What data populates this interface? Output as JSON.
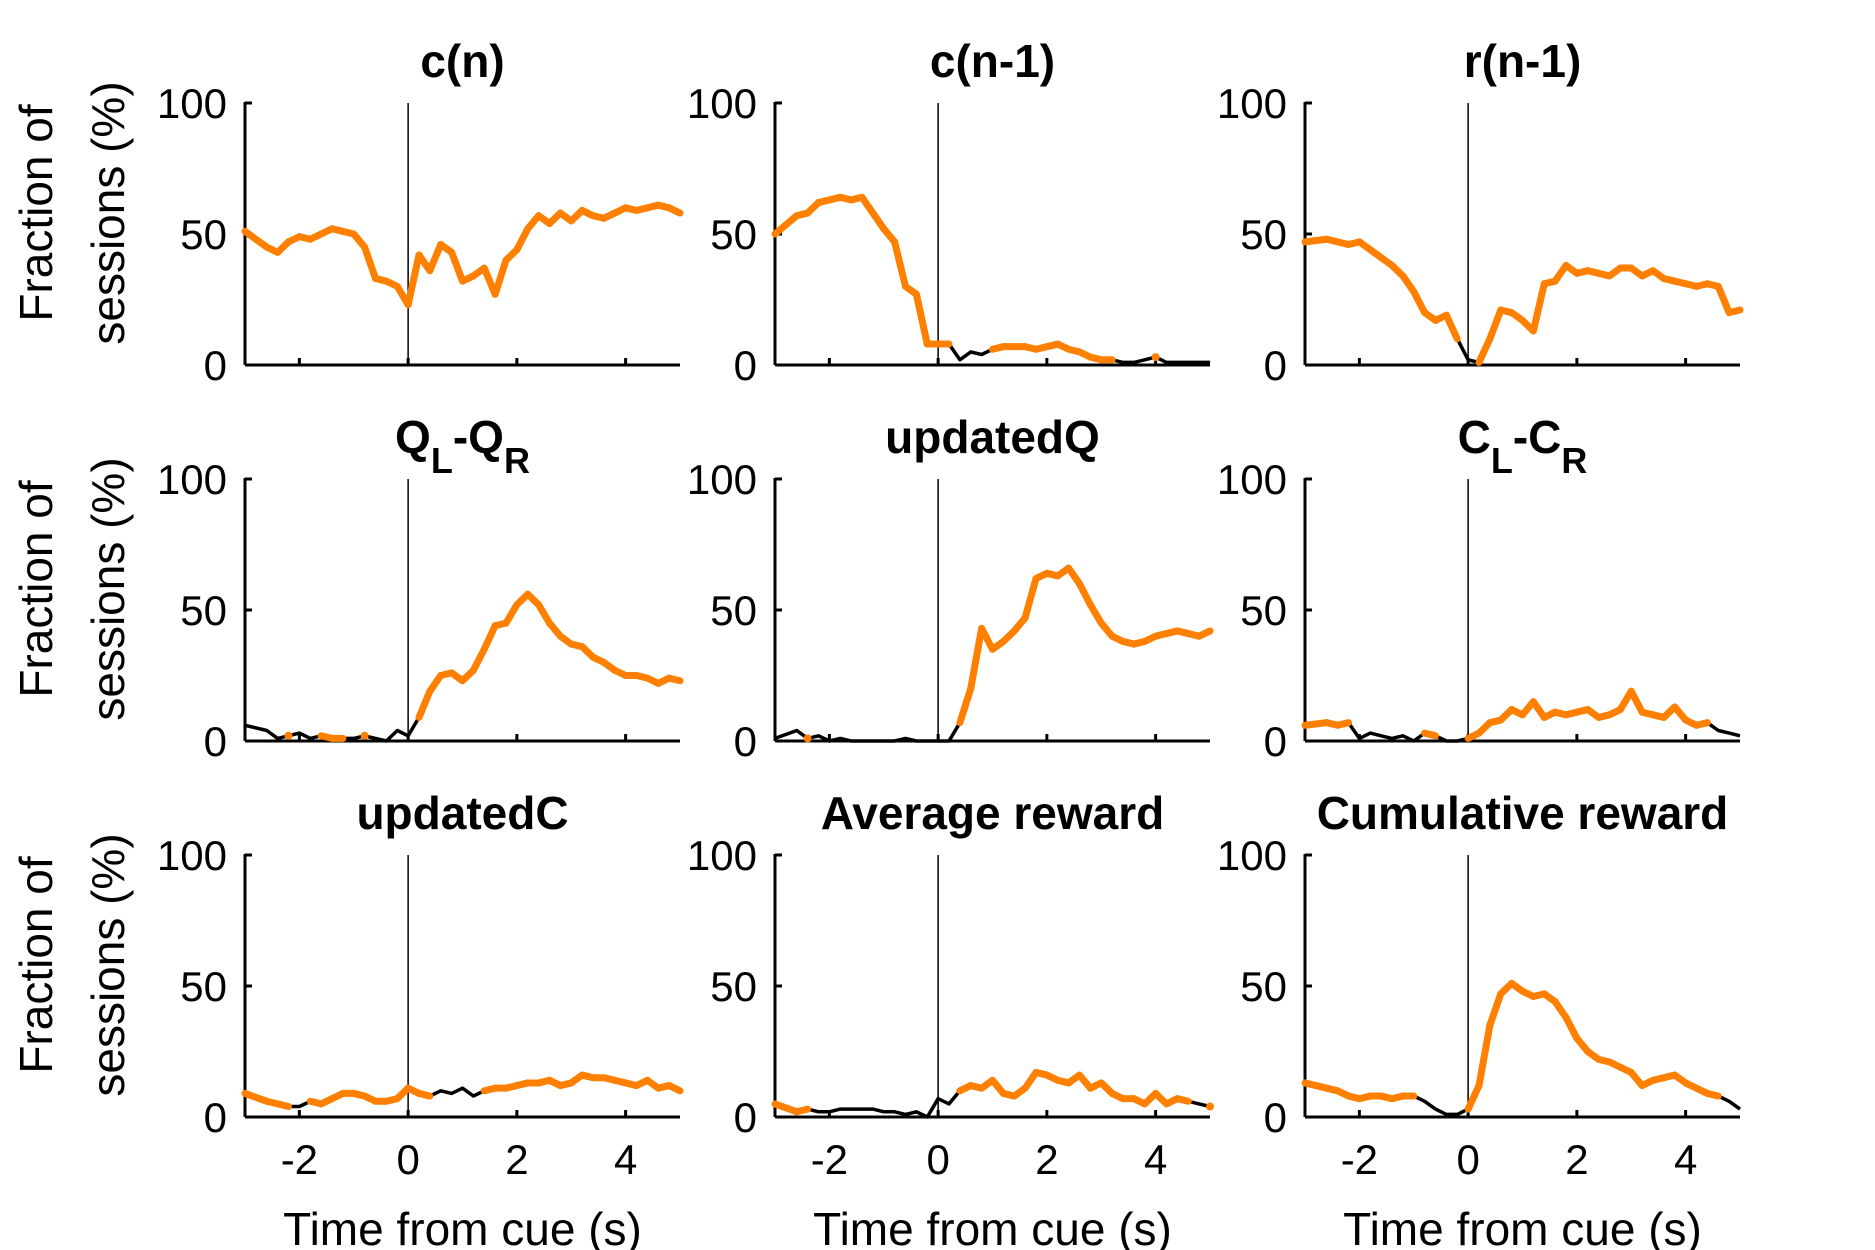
{
  "chart_data": {
    "type": "line",
    "layout": "3x3 grid of line plots",
    "xlabel": "Time from cue (s)",
    "ylabel_lines": [
      "Fraction of",
      "sessions (%)"
    ],
    "xlim": [
      -3,
      5
    ],
    "ylim": [
      0,
      100
    ],
    "xticks": [
      -2,
      0,
      2,
      4
    ],
    "xtick_labels": [
      "-2",
      "0",
      "2",
      "4"
    ],
    "yticks": [
      0,
      50,
      100
    ],
    "ytick_labels": [
      "0",
      "50",
      "100"
    ],
    "vertical_line_x": 0,
    "grid": false,
    "legend": "none",
    "colors": {
      "significant": "#FF8000",
      "not_significant": "#000000"
    },
    "panels": [
      {
        "title": "c(n)",
        "title_main": "c(n)",
        "x": [
          -3,
          -2.6,
          -2.4,
          -2.2,
          -2,
          -1.8,
          -1.6,
          -1.4,
          -1.2,
          -1,
          -0.8,
          -0.6,
          -0.4,
          -0.2,
          0,
          0.2,
          0.4,
          0.6,
          0.8,
          1,
          1.2,
          1.4,
          1.6,
          1.8,
          2,
          2.2,
          2.4,
          2.6,
          2.8,
          3,
          3.2,
          3.4,
          3.6,
          3.8,
          4,
          4.2,
          4.4,
          4.6,
          4.8,
          5
        ],
        "values": [
          51,
          45,
          43,
          47,
          49,
          48,
          50,
          52,
          51,
          50,
          45,
          33,
          32,
          30,
          23,
          42,
          36,
          46,
          43,
          32,
          34,
          37,
          27,
          40,
          44,
          52,
          57,
          54,
          58,
          55,
          59,
          57,
          56,
          58,
          60,
          59,
          60,
          61,
          60,
          58
        ],
        "significant": [
          true,
          true,
          true,
          true,
          true,
          true,
          true,
          true,
          true,
          true,
          true,
          true,
          true,
          true,
          true,
          true,
          true,
          true,
          true,
          true,
          true,
          true,
          true,
          true,
          true,
          true,
          true,
          true,
          true,
          true,
          true,
          true,
          true,
          true,
          true,
          true,
          true,
          true,
          true,
          true
        ]
      },
      {
        "title": "c(n-1)",
        "title_main": "c(n-1)",
        "x": [
          -3,
          -2.6,
          -2.4,
          -2.2,
          -2,
          -1.8,
          -1.6,
          -1.4,
          -1.2,
          -1,
          -0.8,
          -0.6,
          -0.4,
          -0.2,
          0,
          0.2,
          0.4,
          0.6,
          0.8,
          1,
          1.2,
          1.4,
          1.6,
          1.8,
          2,
          2.2,
          2.4,
          2.6,
          2.8,
          3,
          3.2,
          3.4,
          3.6,
          3.8,
          4,
          4.2,
          4.4,
          4.6,
          4.8,
          5
        ],
        "values": [
          50,
          57,
          58,
          62,
          63,
          64,
          63,
          64,
          58,
          52,
          47,
          30,
          27,
          8,
          8,
          8,
          2,
          5,
          4,
          6,
          7,
          7,
          7,
          6,
          7,
          8,
          6,
          5,
          3,
          2,
          2,
          1,
          1,
          2,
          3,
          1,
          1,
          1,
          1,
          1
        ],
        "significant": [
          true,
          true,
          true,
          true,
          true,
          true,
          true,
          true,
          true,
          true,
          true,
          true,
          true,
          true,
          true,
          true,
          false,
          false,
          false,
          true,
          true,
          true,
          true,
          true,
          true,
          true,
          true,
          true,
          true,
          true,
          true,
          false,
          false,
          false,
          true,
          false,
          false,
          false,
          false,
          false
        ]
      },
      {
        "title": "r(n-1)",
        "title_main": "r(n-1)",
        "x": [
          -3,
          -2.6,
          -2.4,
          -2.2,
          -2,
          -1.8,
          -1.6,
          -1.4,
          -1.2,
          -1,
          -0.8,
          -0.6,
          -0.4,
          -0.2,
          0,
          0.2,
          0.4,
          0.6,
          0.8,
          1,
          1.2,
          1.4,
          1.6,
          1.8,
          2,
          2.2,
          2.4,
          2.6,
          2.8,
          3,
          3.2,
          3.4,
          3.6,
          3.8,
          4,
          4.2,
          4.4,
          4.6,
          4.8,
          5
        ],
        "values": [
          47,
          48,
          47,
          46,
          47,
          44,
          41,
          38,
          34,
          28,
          20,
          17,
          19,
          10,
          2,
          1,
          10,
          21,
          20,
          17,
          13,
          31,
          32,
          38,
          35,
          36,
          35,
          34,
          37,
          37,
          34,
          36,
          33,
          32,
          31,
          30,
          31,
          30,
          20,
          21
        ],
        "significant": [
          true,
          true,
          true,
          true,
          true,
          true,
          true,
          true,
          true,
          true,
          true,
          true,
          true,
          true,
          false,
          true,
          true,
          true,
          true,
          true,
          true,
          true,
          true,
          true,
          true,
          true,
          true,
          true,
          true,
          true,
          true,
          true,
          true,
          true,
          true,
          true,
          true,
          true,
          true,
          true
        ]
      },
      {
        "title": "QL-QR",
        "title_main": "Q",
        "title_sub1": "L",
        "title_mid": "-Q",
        "title_sub2": "R",
        "x": [
          -3,
          -2.6,
          -2.4,
          -2.2,
          -2,
          -1.8,
          -1.6,
          -1.4,
          -1.2,
          -1,
          -0.8,
          -0.6,
          -0.4,
          -0.2,
          0,
          0.2,
          0.4,
          0.6,
          0.8,
          1,
          1.2,
          1.4,
          1.6,
          1.8,
          2,
          2.2,
          2.4,
          2.6,
          2.8,
          3,
          3.2,
          3.4,
          3.6,
          3.8,
          4,
          4.2,
          4.4,
          4.6,
          4.8,
          5
        ],
        "values": [
          6,
          4,
          1,
          2,
          3,
          1,
          2,
          1,
          1,
          1,
          2,
          1,
          0,
          4,
          2,
          9,
          19,
          25,
          26,
          23,
          27,
          35,
          44,
          45,
          52,
          56,
          52,
          45,
          40,
          37,
          36,
          32,
          30,
          27,
          25,
          25,
          24,
          22,
          24,
          23
        ],
        "significant": [
          false,
          false,
          false,
          true,
          false,
          false,
          true,
          true,
          true,
          false,
          true,
          false,
          false,
          false,
          false,
          true,
          true,
          true,
          true,
          true,
          true,
          true,
          true,
          true,
          true,
          true,
          true,
          true,
          true,
          true,
          true,
          true,
          true,
          true,
          true,
          true,
          true,
          true,
          true,
          true
        ]
      },
      {
        "title": "updatedQ",
        "title_main": "updatedQ",
        "x": [
          -3,
          -2.6,
          -2.4,
          -2.2,
          -2,
          -1.8,
          -1.6,
          -1.4,
          -1.2,
          -1,
          -0.8,
          -0.6,
          -0.4,
          -0.2,
          0,
          0.2,
          0.4,
          0.6,
          0.8,
          1,
          1.2,
          1.4,
          1.6,
          1.8,
          2,
          2.2,
          2.4,
          2.6,
          2.8,
          3,
          3.2,
          3.4,
          3.6,
          3.8,
          4,
          4.2,
          4.4,
          4.6,
          4.8,
          5
        ],
        "values": [
          1,
          4,
          1,
          2,
          0,
          1,
          0,
          0,
          0,
          0,
          0,
          1,
          0,
          0,
          0,
          0,
          7,
          20,
          43,
          35,
          38,
          42,
          47,
          62,
          64,
          63,
          66,
          60,
          52,
          45,
          40,
          38,
          37,
          38,
          40,
          41,
          42,
          41,
          40,
          42
        ],
        "significant": [
          false,
          false,
          true,
          false,
          false,
          false,
          false,
          false,
          false,
          false,
          false,
          false,
          false,
          false,
          false,
          false,
          true,
          true,
          true,
          true,
          true,
          true,
          true,
          true,
          true,
          true,
          true,
          true,
          true,
          true,
          true,
          true,
          true,
          true,
          true,
          true,
          true,
          true,
          true,
          true
        ]
      },
      {
        "title": "CL-CR",
        "title_main": "C",
        "title_sub1": "L",
        "title_mid": "-C",
        "title_sub2": "R",
        "x": [
          -3,
          -2.6,
          -2.4,
          -2.2,
          -2,
          -1.8,
          -1.6,
          -1.4,
          -1.2,
          -1,
          -0.8,
          -0.6,
          -0.4,
          -0.2,
          0,
          0.2,
          0.4,
          0.6,
          0.8,
          1,
          1.2,
          1.4,
          1.6,
          1.8,
          2,
          2.2,
          2.4,
          2.6,
          2.8,
          3,
          3.2,
          3.4,
          3.6,
          3.8,
          4,
          4.2,
          4.4,
          4.6,
          4.8,
          5
        ],
        "values": [
          6,
          7,
          6,
          7,
          1,
          3,
          2,
          1,
          2,
          0,
          3,
          2,
          0,
          0,
          1,
          3,
          7,
          8,
          12,
          10,
          15,
          9,
          11,
          10,
          11,
          12,
          9,
          10,
          12,
          19,
          11,
          10,
          9,
          13,
          8,
          6,
          7,
          4,
          3,
          2
        ],
        "significant": [
          true,
          true,
          true,
          true,
          false,
          false,
          false,
          false,
          false,
          false,
          true,
          true,
          false,
          false,
          true,
          true,
          true,
          true,
          true,
          true,
          true,
          true,
          true,
          true,
          true,
          true,
          true,
          true,
          true,
          true,
          true,
          true,
          true,
          true,
          true,
          true,
          true,
          false,
          false,
          false
        ]
      },
      {
        "title": "updatedC",
        "title_main": "updatedC",
        "x": [
          -3,
          -2.6,
          -2.4,
          -2.2,
          -2,
          -1.8,
          -1.6,
          -1.4,
          -1.2,
          -1,
          -0.8,
          -0.6,
          -0.4,
          -0.2,
          0,
          0.2,
          0.4,
          0.6,
          0.8,
          1,
          1.2,
          1.4,
          1.6,
          1.8,
          2,
          2.2,
          2.4,
          2.6,
          2.8,
          3,
          3.2,
          3.4,
          3.6,
          3.8,
          4,
          4.2,
          4.4,
          4.6,
          4.8,
          5
        ],
        "values": [
          9,
          6,
          5,
          4,
          4,
          6,
          5,
          7,
          9,
          9,
          8,
          6,
          6,
          7,
          11,
          9,
          8,
          10,
          9,
          11,
          8,
          10,
          11,
          11,
          12,
          13,
          13,
          14,
          12,
          13,
          16,
          15,
          15,
          14,
          13,
          12,
          14,
          11,
          12,
          10
        ],
        "significant": [
          true,
          true,
          true,
          true,
          false,
          true,
          true,
          true,
          true,
          true,
          true,
          true,
          true,
          true,
          true,
          true,
          true,
          false,
          false,
          false,
          false,
          true,
          true,
          true,
          true,
          true,
          true,
          true,
          true,
          true,
          true,
          true,
          true,
          true,
          true,
          true,
          true,
          true,
          true,
          true
        ]
      },
      {
        "title": "Average reward",
        "title_main": "Average reward",
        "x": [
          -3,
          -2.6,
          -2.4,
          -2.2,
          -2,
          -1.8,
          -1.6,
          -1.4,
          -1.2,
          -1,
          -0.8,
          -0.6,
          -0.4,
          -0.2,
          0,
          0.2,
          0.4,
          0.6,
          0.8,
          1,
          1.2,
          1.4,
          1.6,
          1.8,
          2,
          2.2,
          2.4,
          2.6,
          2.8,
          3,
          3.2,
          3.4,
          3.6,
          3.8,
          4,
          4.2,
          4.4,
          4.6,
          4.8,
          5
        ],
        "values": [
          5,
          2,
          3,
          2,
          2,
          3,
          3,
          3,
          3,
          2,
          2,
          1,
          2,
          0,
          7,
          5,
          10,
          12,
          11,
          14,
          9,
          8,
          11,
          17,
          16,
          14,
          13,
          16,
          11,
          13,
          9,
          7,
          7,
          5,
          9,
          5,
          7,
          6,
          5,
          4
        ],
        "significant": [
          true,
          true,
          true,
          false,
          false,
          false,
          false,
          false,
          false,
          false,
          false,
          false,
          false,
          false,
          false,
          false,
          true,
          true,
          true,
          true,
          true,
          true,
          true,
          true,
          true,
          true,
          true,
          true,
          true,
          true,
          true,
          true,
          true,
          true,
          true,
          true,
          true,
          true,
          false,
          true
        ]
      },
      {
        "title": "Cumulative reward",
        "title_main": "Cumulative reward",
        "x": [
          -3,
          -2.6,
          -2.4,
          -2.2,
          -2,
          -1.8,
          -1.6,
          -1.4,
          -1.2,
          -1,
          -0.8,
          -0.6,
          -0.4,
          -0.2,
          0,
          0.2,
          0.4,
          0.6,
          0.8,
          1,
          1.2,
          1.4,
          1.6,
          1.8,
          2,
          2.2,
          2.4,
          2.6,
          2.8,
          3,
          3.2,
          3.4,
          3.6,
          3.8,
          4,
          4.2,
          4.4,
          4.6,
          4.8,
          5
        ],
        "values": [
          13,
          11,
          10,
          8,
          7,
          8,
          8,
          7,
          8,
          8,
          6,
          3,
          1,
          1,
          3,
          12,
          35,
          47,
          51,
          48,
          46,
          47,
          44,
          38,
          30,
          25,
          22,
          21,
          19,
          17,
          12,
          14,
          15,
          16,
          13,
          11,
          9,
          8,
          6,
          3
        ],
        "significant": [
          true,
          true,
          true,
          true,
          true,
          true,
          true,
          true,
          true,
          true,
          false,
          false,
          false,
          false,
          true,
          true,
          true,
          true,
          true,
          true,
          true,
          true,
          true,
          true,
          true,
          true,
          true,
          true,
          true,
          true,
          true,
          true,
          true,
          true,
          true,
          true,
          true,
          true,
          false,
          false
        ]
      }
    ]
  }
}
